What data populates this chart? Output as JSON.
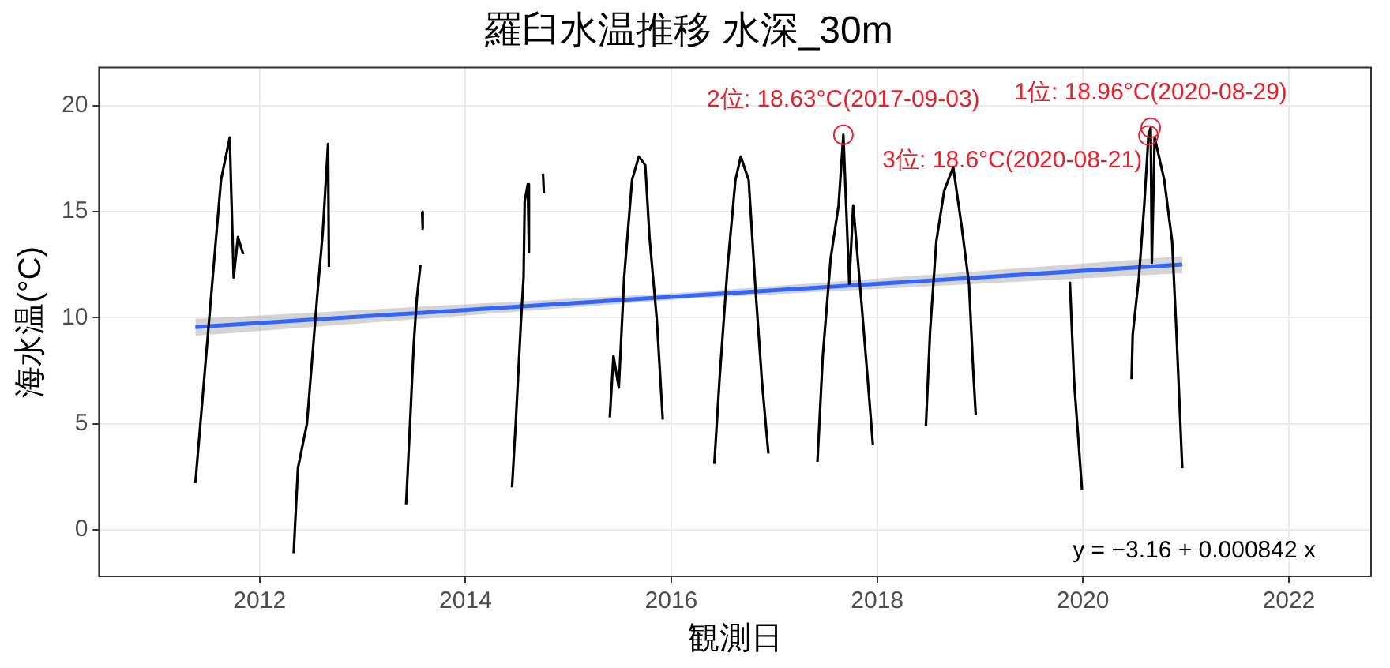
{
  "chart_data": {
    "type": "line",
    "title": "羅臼水温推移 水深_30m",
    "xlabel": "観測日",
    "ylabel": "海水温(°C)",
    "xlim": [
      "2010-06-10",
      "2022-10-20"
    ],
    "xticks": [
      {
        "value": "2012",
        "label": "2012"
      },
      {
        "value": "2014",
        "label": "2014"
      },
      {
        "value": "2016",
        "label": "2016"
      },
      {
        "value": "2018",
        "label": "2018"
      },
      {
        "value": "2020",
        "label": "2020"
      },
      {
        "value": "2022",
        "label": "2022"
      }
    ],
    "ylim": [
      -2.2,
      21.8
    ],
    "yticks": [
      0,
      5,
      10,
      15,
      20
    ],
    "grid": true,
    "legend": false,
    "marker": "none",
    "line_style": "solid",
    "series": [
      {
        "color": "#000000",
        "x": [
          "2011-05-18",
          "2011-07-23",
          "2011-08-17",
          "2011-09-17",
          "2011-10-01",
          "2011-10-16",
          "2011-11-04",
          "2011-12-20",
          "2012-05-01",
          "2012-05-16",
          "2012-06-17",
          "2012-07-24",
          "2012-08-12",
          "2012-08-31",
          "2012-09-03",
          "2013-01-15",
          "2013-06-04",
          "2013-06-18",
          "2013-07-01",
          "2013-07-12",
          "2013-07-25",
          "2013-07-28",
          "2013-07-31",
          "2013-08-02",
          "2014-01-15",
          "2014-06-15",
          "2014-06-28",
          "2014-07-17",
          "2014-07-26",
          "2014-07-30",
          "2014-08-10",
          "2014-08-14",
          "2014-09-20",
          "2014-10-03",
          "2014-10-06",
          "2015-01-15",
          "2015-05-28",
          "2015-06-10",
          "2015-06-29",
          "2015-07-18",
          "2015-08-15",
          "2015-09-08",
          "2015-10-01",
          "2015-10-16",
          "2015-11-11",
          "2015-12-02",
          "2016-01-15",
          "2016-06-02",
          "2016-06-21",
          "2016-07-19",
          "2016-08-16",
          "2016-09-04",
          "2016-10-02",
          "2016-10-26",
          "2016-11-18",
          "2016-12-11",
          "2017-01-15",
          "2017-06-03",
          "2017-06-22",
          "2017-07-20",
          "2017-08-17",
          "2017-09-03",
          "2017-09-24",
          "2017-10-08",
          "2017-11-07",
          "2017-11-29",
          "2017-12-17",
          "2018-01-15",
          "2018-06-23",
          "2018-07-08",
          "2018-07-30",
          "2018-08-27",
          "2018-09-28",
          "2018-10-28",
          "2018-11-23",
          "2018-12-08",
          "2018-12-17",
          "2019-06-15",
          "2019-11-16",
          "2019-12-01",
          "2019-12-29",
          "2020-03-15",
          "2020-06-22",
          "2020-06-26",
          "2020-07-18",
          "2020-08-06",
          "2020-08-21",
          "2020-08-29",
          "2020-09-02",
          "2020-09-12",
          "2020-10-16",
          "2020-11-13",
          "2020-11-28",
          "2020-12-19"
        ],
        "values": [
          2.2,
          12.6,
          16.5,
          18.5,
          11.9,
          13.8,
          13.0,
          null,
          -1.1,
          2.9,
          5.0,
          11.1,
          14.0,
          18.2,
          12.4,
          null,
          1.2,
          5.0,
          8.7,
          10.9,
          12.5,
          null,
          15.0,
          14.2,
          null,
          2.0,
          5.0,
          9.9,
          11.9,
          15.5,
          16.3,
          13.1,
          null,
          16.8,
          15.9,
          null,
          5.3,
          8.2,
          6.7,
          11.9,
          16.5,
          17.6,
          17.2,
          13.8,
          9.9,
          5.2,
          null,
          3.1,
          7.2,
          12.4,
          16.5,
          17.6,
          16.5,
          11.4,
          7.0,
          3.6,
          null,
          3.2,
          8.2,
          12.8,
          15.3,
          18.63,
          11.6,
          15.3,
          10.6,
          7.0,
          4.0,
          null,
          4.9,
          9.4,
          13.6,
          16.0,
          17.1,
          14.3,
          11.6,
          7.5,
          5.4,
          null,
          11.7,
          7.0,
          1.9,
          null,
          7.1,
          9.2,
          11.9,
          15.3,
          18.6,
          18.96,
          12.6,
          18.5,
          16.5,
          13.6,
          9.4,
          2.9
        ]
      },
      {
        "color": "#3366ff",
        "x": [
          "2011-05-18",
          "2016-03-04",
          "2020-12-19"
        ],
        "values": [
          9.56,
          11.04,
          12.51
        ],
        "lower": [
          9.15,
          10.9,
          12.1
        ],
        "upper": [
          9.95,
          11.2,
          12.9
        ]
      }
    ],
    "annotations": [
      {
        "text": "2位: 18.63°C(2017-09-03)",
        "x": "2017-09-03",
        "y": 18.63
      },
      {
        "text": "1位: 18.96°C(2020-08-29)",
        "x": "2020-08-29",
        "y": 18.96
      },
      {
        "text": "3位: 18.6°C(2020-08-21)",
        "x": "2020-08-21",
        "y": 18.6
      },
      "y = −3.16 + 0.000842 x"
    ]
  }
}
